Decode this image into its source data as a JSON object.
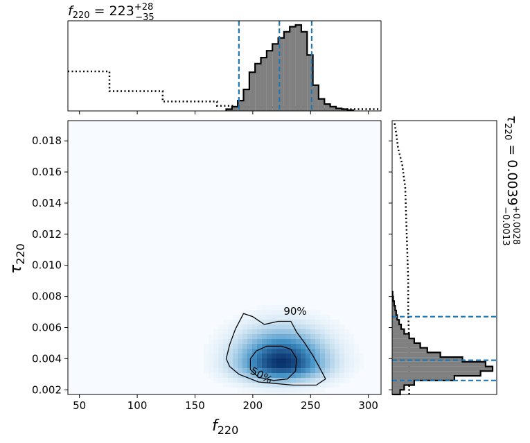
{
  "chart_data": {
    "type": "corner",
    "top_title": {
      "text": "f",
      "sub": "220",
      "rest": " = 223",
      "sup": "+28",
      "inf": "−35"
    },
    "right_title": {
      "text": "τ",
      "sub": "220",
      "rest": " = 0.0039",
      "sup": "+0.0028",
      "inf": "−0.0013"
    },
    "xlabel": {
      "text": "f",
      "sub": "220"
    },
    "ylabel": {
      "text": "τ",
      "sub": "220"
    },
    "xlim": [
      40,
      311
    ],
    "ylim": [
      0.0017,
      0.0193
    ],
    "xticks": [
      "50",
      "100",
      "150",
      "200",
      "250",
      "300"
    ],
    "xtick_values": [
      50,
      100,
      150,
      200,
      250,
      300
    ],
    "yticks": [
      "0.002",
      "0.004",
      "0.006",
      "0.008",
      "0.010",
      "0.012",
      "0.014",
      "0.016",
      "0.018"
    ],
    "ytick_values": [
      0.002,
      0.004,
      0.006,
      0.008,
      0.01,
      0.012,
      0.014,
      0.016,
      0.018
    ],
    "f_quantiles": [
      188,
      223,
      251
    ],
    "tau_quantiles": [
      0.0026,
      0.0039,
      0.0067
    ],
    "f_histogram": {
      "bins": [
        177,
        182,
        187,
        192,
        197,
        202,
        207,
        212,
        217,
        222,
        227,
        232,
        237,
        242,
        247,
        252,
        257,
        262,
        267,
        272,
        277,
        282,
        287
      ],
      "density": [
        0.02,
        0.05,
        0.12,
        0.25,
        0.45,
        0.55,
        0.62,
        0.7,
        0.78,
        0.85,
        0.92,
        0.98,
        1.0,
        0.92,
        0.65,
        0.3,
        0.14,
        0.08,
        0.05,
        0.03,
        0.02,
        0.01
      ]
    },
    "f_prior": {
      "edges": [
        40,
        76,
        122,
        169,
        183,
        240,
        311
      ],
      "levels": [
        0.46,
        0.23,
        0.11,
        0.06,
        0.04,
        0.02
      ]
    },
    "tau_histogram": {
      "bins": [
        0.0017,
        0.002,
        0.0023,
        0.0026,
        0.0029,
        0.0032,
        0.0035,
        0.0038,
        0.0041,
        0.0044,
        0.0047,
        0.005,
        0.0053,
        0.0056,
        0.0059,
        0.0062,
        0.0065,
        0.0068,
        0.0071,
        0.0074,
        0.0077,
        0.008,
        0.0083
      ],
      "density": [
        0.08,
        0.12,
        0.22,
        0.62,
        0.88,
        1.0,
        0.93,
        0.7,
        0.48,
        0.35,
        0.28,
        0.22,
        0.17,
        0.12,
        0.09,
        0.07,
        0.05,
        0.04,
        0.03,
        0.02,
        0.01,
        0.005
      ]
    },
    "tau_prior": {
      "y": [
        0.0017,
        0.003,
        0.005,
        0.007,
        0.009,
        0.011,
        0.013,
        0.015,
        0.0165,
        0.0175,
        0.0185,
        0.0193
      ],
      "density": [
        0.17,
        0.17,
        0.17,
        0.16,
        0.16,
        0.15,
        0.14,
        0.13,
        0.1,
        0.06,
        0.04,
        0.02
      ]
    },
    "density_peak": {
      "x": 225,
      "y": 0.0037
    },
    "contours": [
      {
        "label": "50%",
        "points": [
          [
            198,
            0.004
          ],
          [
            203,
            0.0045
          ],
          [
            212,
            0.0048
          ],
          [
            225,
            0.0048
          ],
          [
            233,
            0.0046
          ],
          [
            238,
            0.004
          ],
          [
            237,
            0.0032
          ],
          [
            230,
            0.0027
          ],
          [
            218,
            0.0026
          ],
          [
            205,
            0.0028
          ],
          [
            198,
            0.0033
          ]
        ]
      },
      {
        "label": "90%",
        "points": [
          [
            177,
            0.004
          ],
          [
            180,
            0.0049
          ],
          [
            185,
            0.0059
          ],
          [
            192,
            0.0069
          ],
          [
            200,
            0.0067
          ],
          [
            210,
            0.0062
          ],
          [
            222,
            0.0064
          ],
          [
            233,
            0.0064
          ],
          [
            238,
            0.0057
          ],
          [
            245,
            0.005
          ],
          [
            252,
            0.0042
          ],
          [
            258,
            0.0034
          ],
          [
            263,
            0.0027
          ],
          [
            255,
            0.0023
          ],
          [
            235,
            0.0023
          ],
          [
            205,
            0.0025
          ],
          [
            188,
            0.003
          ],
          [
            180,
            0.0035
          ]
        ]
      }
    ],
    "colors": {
      "hist_fill": "#808080",
      "quantile": "#1f77b4",
      "density_low": "#f7fbff",
      "density_high": "#08306b"
    }
  }
}
